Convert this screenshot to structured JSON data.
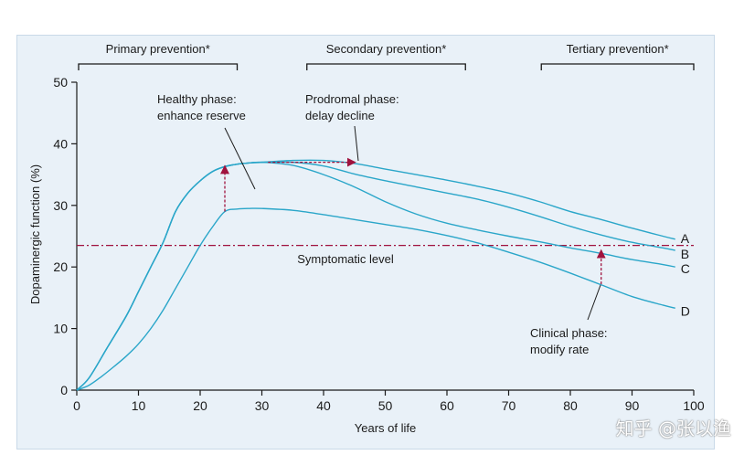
{
  "chart_data": {
    "type": "line",
    "xlabel": "Years of life",
    "ylabel": "Dopaminergic function (%)",
    "xlim": [
      0,
      100
    ],
    "ylim": [
      0,
      50
    ],
    "xticks": [
      0,
      10,
      20,
      30,
      40,
      50,
      60,
      70,
      80,
      90,
      100
    ],
    "yticks": [
      0,
      10,
      20,
      30,
      40,
      50
    ],
    "grid": false,
    "colors": {
      "curve": "#2aa6c9",
      "annotation": "#a0123e",
      "text": "#1a1a1a",
      "background": "#e9f1f8"
    },
    "series": [
      {
        "name": "A",
        "x": [
          0,
          2,
          5,
          8,
          10,
          12,
          14,
          16,
          18,
          20,
          22,
          24,
          26,
          28,
          30,
          35,
          40,
          45,
          50,
          55,
          60,
          65,
          70,
          75,
          80,
          85,
          90,
          95,
          97
        ],
        "y": [
          0,
          2,
          7,
          12,
          16,
          20,
          24,
          29,
          32,
          34,
          35.5,
          36.3,
          36.7,
          36.9,
          37,
          37.3,
          37.3,
          36.8,
          35.9,
          35,
          34.1,
          33.1,
          32,
          30.6,
          29,
          27.7,
          26.3,
          25,
          24.5
        ]
      },
      {
        "name": "B",
        "x": [
          0,
          2,
          5,
          8,
          10,
          12,
          14,
          16,
          18,
          20,
          22,
          24,
          26,
          28,
          30,
          35,
          40,
          45,
          50,
          55,
          60,
          65,
          70,
          75,
          80,
          85,
          90,
          95,
          97
        ],
        "y": [
          0,
          2,
          7,
          12,
          16,
          20,
          24,
          29,
          32,
          34,
          35.5,
          36.3,
          36.7,
          36.9,
          37,
          37,
          36.4,
          35.1,
          34,
          33,
          32,
          31,
          29.7,
          28.2,
          26.6,
          25.2,
          24,
          23.1,
          22.7
        ]
      },
      {
        "name": "C",
        "x": [
          0,
          2,
          5,
          8,
          10,
          12,
          14,
          16,
          18,
          20,
          22,
          24,
          26,
          28,
          30,
          35,
          40,
          45,
          50,
          55,
          60,
          65,
          70,
          75,
          80,
          85,
          90,
          95,
          97
        ],
        "y": [
          0,
          2,
          7,
          12,
          16,
          20,
          24,
          29,
          32,
          34,
          35.5,
          36.3,
          36.7,
          36.9,
          37,
          36.5,
          35,
          33,
          30.6,
          28.6,
          27.1,
          26,
          25,
          24.1,
          23.1,
          22.2,
          21.2,
          20.4,
          20
        ]
      },
      {
        "name": "D",
        "x": [
          0,
          2,
          4,
          6,
          8,
          10,
          12,
          14,
          16,
          18,
          20,
          22,
          24,
          26,
          28,
          30,
          35,
          40,
          45,
          50,
          55,
          60,
          65,
          70,
          75,
          80,
          85,
          90,
          95,
          97
        ],
        "y": [
          0,
          0.8,
          2.2,
          3.8,
          5.5,
          7.5,
          10,
          13,
          16.5,
          20,
          23.5,
          26.5,
          29,
          29.4,
          29.5,
          29.5,
          29.2,
          28.5,
          27.7,
          26.9,
          26.1,
          25.1,
          23.9,
          22.4,
          20.8,
          19,
          17.1,
          15.2,
          13.8,
          13.3
        ]
      }
    ],
    "series_labels": [
      "A",
      "B",
      "C",
      "D"
    ],
    "reference_line": {
      "y": 23.5,
      "label": "Symptomatic level"
    },
    "prevention_brackets": [
      {
        "label": "Primary prevention*",
        "from": 0,
        "to": 26
      },
      {
        "label": "Secondary prevention*",
        "from": 37,
        "to": 63
      },
      {
        "label": "Tertiary prevention*",
        "from": 75,
        "to": 100
      }
    ],
    "annotations": [
      {
        "lines": [
          "Healthy phase:",
          "enhance reserve"
        ],
        "x": 31,
        "y": 44.5
      },
      {
        "lines": [
          "Prodromal phase:",
          "delay decline"
        ],
        "x": 37,
        "y": 44.5
      },
      {
        "lines": [
          "Clinical phase:",
          "modify rate"
        ],
        "x": 74,
        "y": 9
      }
    ],
    "arrows": [
      {
        "type": "vertical",
        "x": 24,
        "y_from": 29,
        "y_to": 36.3
      },
      {
        "type": "horizontal",
        "y": 37,
        "x_from": 31,
        "x_to": 45
      },
      {
        "type": "vertical",
        "x": 85,
        "y_from": 17.2,
        "y_to": 22.6
      }
    ],
    "watermark": "知乎 @张以渔"
  }
}
